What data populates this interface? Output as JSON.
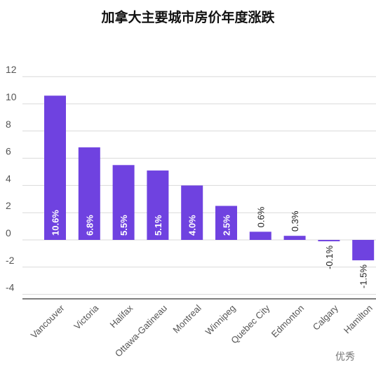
{
  "title": "加拿大主要城市房价年度涨跌",
  "watermark": "优秀",
  "colors": {
    "bar": "#6f42e0",
    "grid": "#d9d9d9",
    "axis": "#555555"
  },
  "chart_data": {
    "type": "bar",
    "title": "加拿大主要城市房价年度涨跌",
    "categories": [
      "Vancouver",
      "Victoria",
      "Halifax",
      "Ottawa-Gatineau",
      "Montreal",
      "Winnipeg",
      "Quebec City",
      "Edmonton",
      "Calgary",
      "Hamilton"
    ],
    "values": [
      10.6,
      6.8,
      5.5,
      5.1,
      4.0,
      2.5,
      0.6,
      0.3,
      -0.1,
      -1.5
    ],
    "data_labels": [
      "10.6%",
      "6.8%",
      "5.5%",
      "5.1%",
      "4.0%",
      "2.5%",
      "0.6%",
      "0.3%",
      "-0.1%",
      "-1.5%"
    ],
    "yticks": [
      12,
      10,
      8,
      6,
      4,
      2,
      0,
      -2,
      -4
    ],
    "ylim": [
      -5,
      12
    ],
    "grid": true,
    "xlabel": "",
    "ylabel": ""
  }
}
